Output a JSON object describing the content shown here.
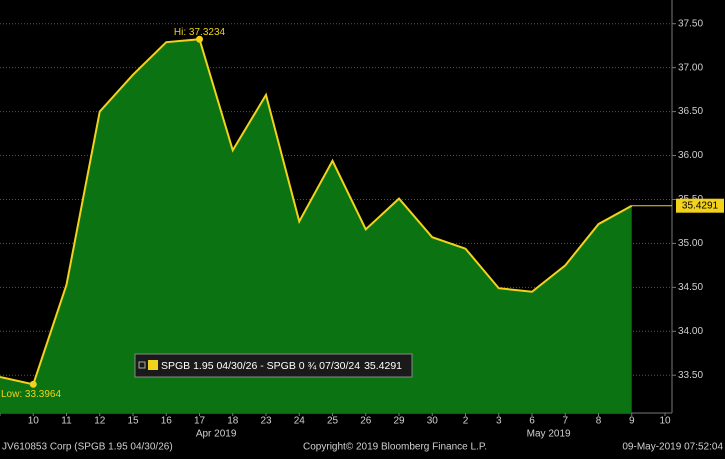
{
  "chart_data": {
    "type": "area",
    "categories": [
      null,
      "10",
      "11",
      "12",
      "15",
      "16",
      "17",
      "18",
      "23",
      "24",
      "25",
      "26",
      "29",
      "30",
      "2",
      "3",
      "6",
      "7",
      "8",
      "9",
      "10"
    ],
    "series": [
      {
        "name": "SPGB 1.95 04/30/26 - SPGB 0 ¾ 07/30/24",
        "color": "#f2d21c",
        "fill": "#0b7312",
        "values": [
          33.48,
          33.3964,
          34.53,
          36.5,
          36.92,
          37.29,
          37.3234,
          36.06,
          36.69,
          35.25,
          35.94,
          35.16,
          35.51,
          35.07,
          34.94,
          34.49,
          34.45,
          34.75,
          35.22,
          35.4291,
          null
        ]
      }
    ],
    "last_value_label": "35.4291",
    "high": {
      "index": 6,
      "label": "Hi: 37.3234"
    },
    "low": {
      "index": 1,
      "label": "Low: 33.3964"
    },
    "months": [
      {
        "label": "Apr 2019",
        "index": 6
      },
      {
        "label": "May 2019",
        "index": 16
      }
    ],
    "ylim": [
      33.07,
      37.77
    ],
    "yticks": [
      {
        "value": 33.5,
        "label": "33.50"
      },
      {
        "value": 34,
        "label": "34.00"
      },
      {
        "value": 34.5,
        "label": "34.50"
      },
      {
        "value": 35,
        "label": "35.00"
      },
      {
        "value": 35.5,
        "label": "35.50"
      },
      {
        "value": 36,
        "label": "36.00"
      },
      {
        "value": 36.5,
        "label": "36.50"
      },
      {
        "value": 37,
        "label": "37.00"
      },
      {
        "value": 37.5,
        "label": "37.50"
      }
    ],
    "grid": true,
    "footer": {
      "left": "JV610853 Corp (SPGB 1.95 04/30/26)",
      "center": "Copyright© 2019 Bloomberg Finance L.P.",
      "right": "09-May-2019 07:52:04"
    }
  }
}
